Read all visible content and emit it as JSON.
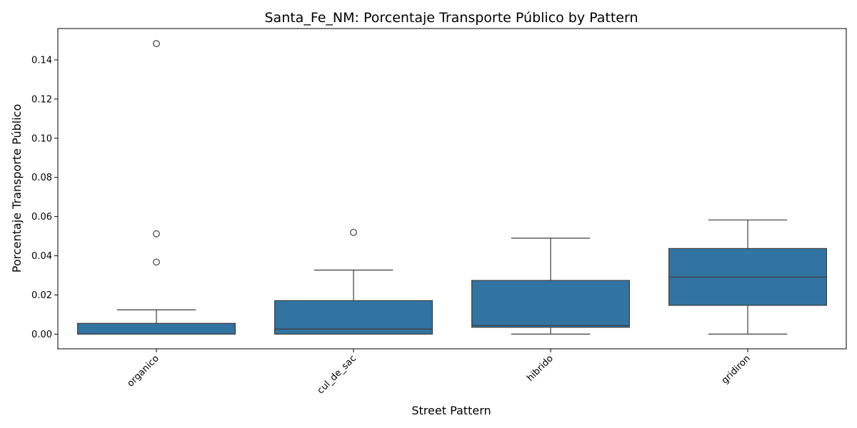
{
  "chart_data": {
    "type": "box",
    "title": "Santa_Fe_NM: Porcentaje Transporte Público by Pattern",
    "xlabel": "Street Pattern",
    "ylabel": "Porcentaje Transporte Público",
    "ylim": [
      -0.0075,
      0.156
    ],
    "yticks": [
      0.0,
      0.02,
      0.04,
      0.06,
      0.08,
      0.1,
      0.12,
      0.14
    ],
    "ytick_labels": [
      "0.00",
      "0.02",
      "0.04",
      "0.06",
      "0.08",
      "0.10",
      "0.12",
      "0.14"
    ],
    "categories": [
      "organico",
      "cul_de_sac",
      "hibrido",
      "gridiron"
    ],
    "boxes": [
      {
        "category": "organico",
        "whisker_low": 0.0,
        "q1": 0.0,
        "median": 0.0,
        "q3": 0.0055,
        "whisker_high": 0.0124,
        "outliers": [
          0.0368,
          0.0512,
          0.1483
        ]
      },
      {
        "category": "cul_de_sac",
        "whisker_low": 0.0,
        "q1": 0.0,
        "median": 0.0026,
        "q3": 0.0171,
        "whisker_high": 0.0327,
        "outliers": [
          0.0519
        ]
      },
      {
        "category": "hibrido",
        "whisker_low": 0.0,
        "q1": 0.0035,
        "median": 0.0044,
        "q3": 0.0274,
        "whisker_high": 0.049,
        "outliers": []
      },
      {
        "category": "gridiron",
        "whisker_low": 0.0,
        "q1": 0.0147,
        "median": 0.0291,
        "q3": 0.0437,
        "whisker_high": 0.0583,
        "outliers": []
      }
    ],
    "box_color": "#3274a1",
    "line_color": "#3d3d3d",
    "grid": false,
    "legend": false
  }
}
